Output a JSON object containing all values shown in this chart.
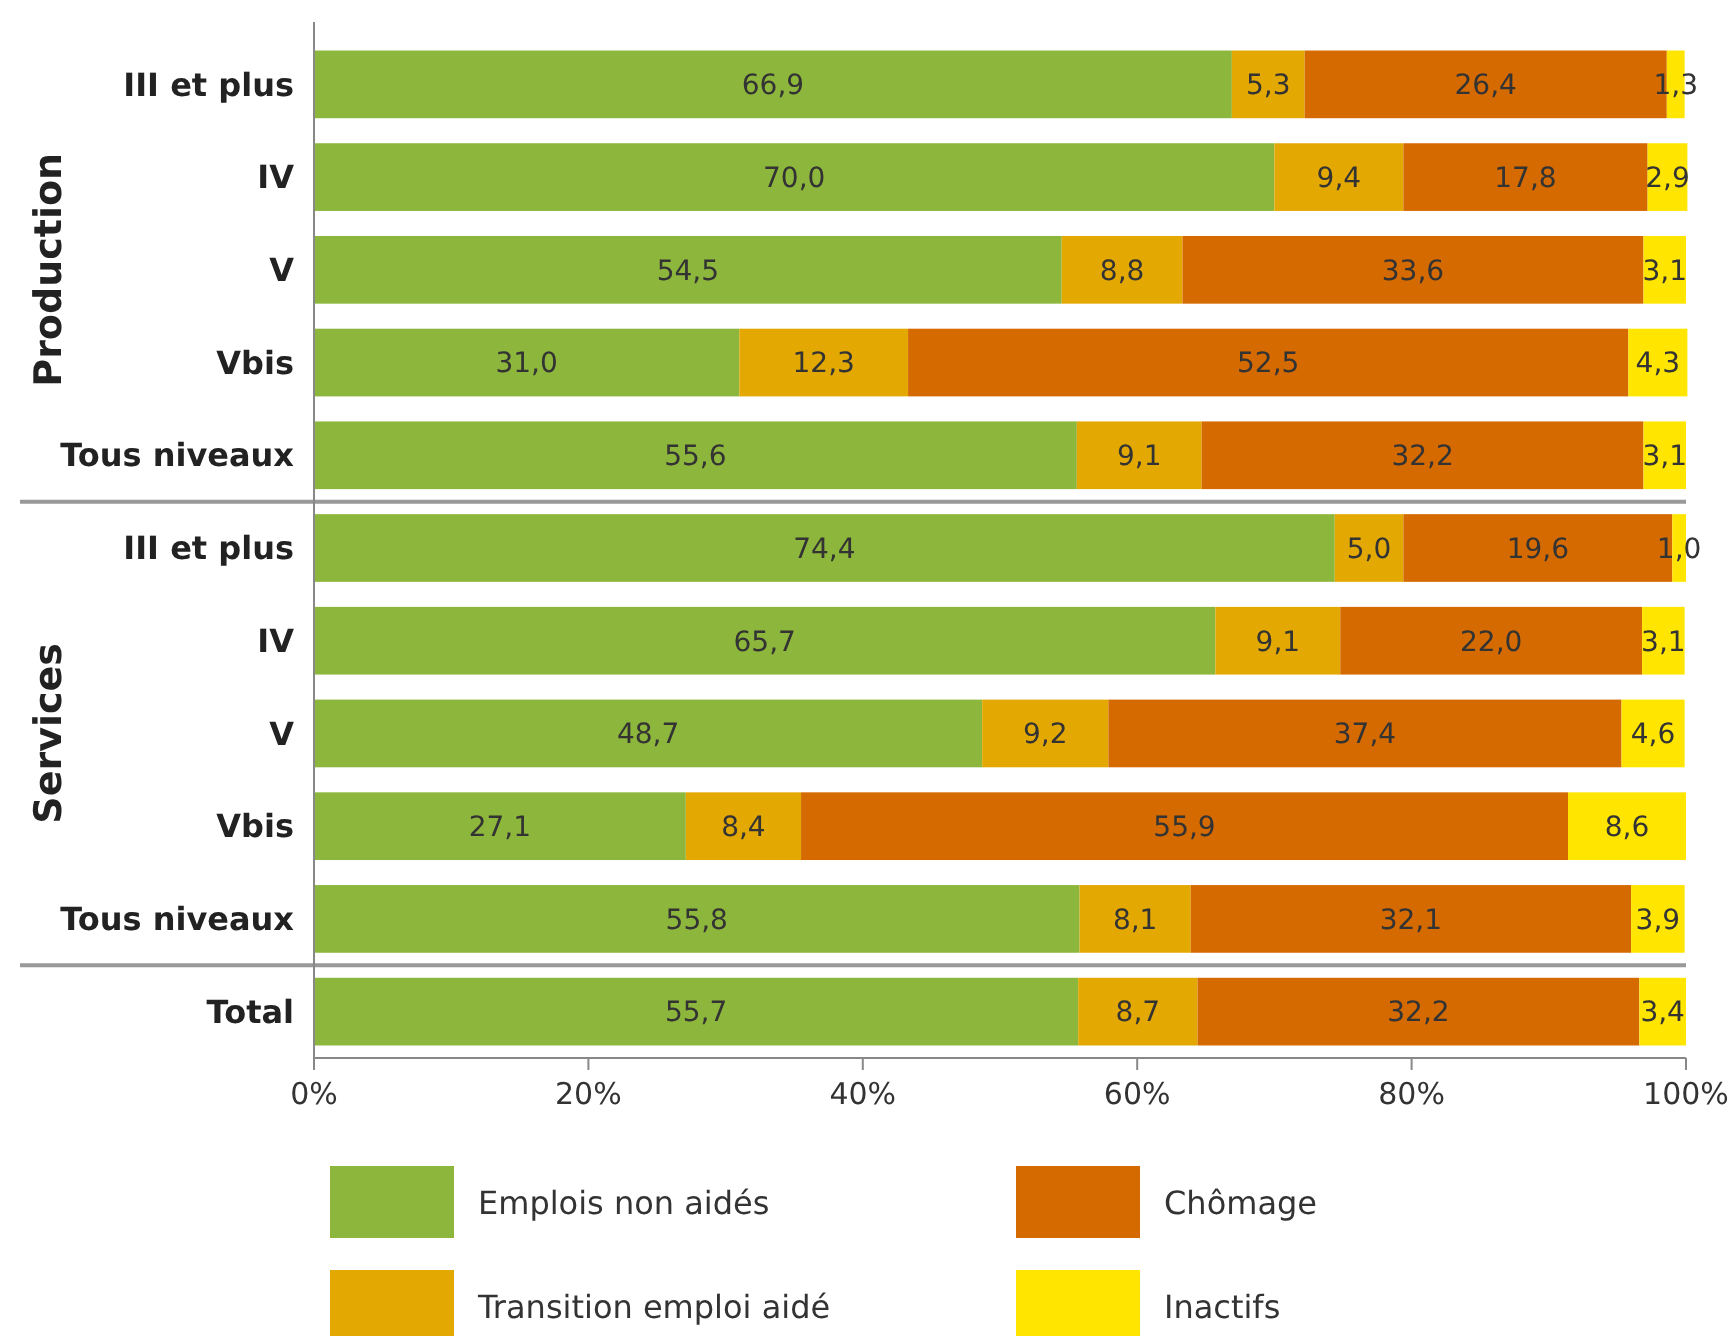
{
  "chart_data": {
    "type": "bar",
    "orientation": "horizontal",
    "stacked": true,
    "categories": [
      "III et plus",
      "IV",
      "V",
      "Vbis",
      "Tous niveaux",
      "III et plus",
      "IV",
      "V",
      "Vbis",
      "Tous niveaux",
      "Total"
    ],
    "annotations": [
      "Production",
      "Services"
    ],
    "series": [
      {
        "name": "Emplois non aidés",
        "color": "#8db63c",
        "values": [
          66.9,
          70.0,
          54.5,
          31.0,
          55.6,
          74.4,
          65.7,
          48.7,
          27.1,
          55.8,
          55.7
        ],
        "value_labels": [
          "66,9",
          "70,0",
          "54,5",
          "31,0",
          "55,6",
          "74,4",
          "65,7",
          "48,7",
          "27,1",
          "55,8",
          "55,7"
        ]
      },
      {
        "name": "Transition emploi aidé",
        "color": "#e3a902",
        "values": [
          5.3,
          9.4,
          8.8,
          12.3,
          9.1,
          5.0,
          9.1,
          9.2,
          8.4,
          8.1,
          8.7
        ],
        "value_labels": [
          "5,3",
          "9,4",
          "8,8",
          "12,3",
          "9,1",
          "5,0",
          "9,1",
          "9,2",
          "8,4",
          "8,1",
          "8,7"
        ]
      },
      {
        "name": "Chômage",
        "color": "#d46a00",
        "values": [
          26.4,
          17.8,
          33.6,
          52.5,
          32.2,
          19.6,
          22.0,
          37.4,
          55.9,
          32.1,
          32.2
        ],
        "value_labels": [
          "26,4",
          "17,8",
          "33,6",
          "52,5",
          "32,2",
          "19,6",
          "22,0",
          "37,4",
          "55,9",
          "32,1",
          "32,2"
        ]
      },
      {
        "name": "Inactifs",
        "color": "#ffe500",
        "values": [
          1.3,
          2.9,
          3.1,
          4.3,
          3.1,
          1.0,
          3.1,
          4.6,
          8.6,
          3.9,
          3.4
        ],
        "value_labels": [
          "1,3",
          "2,9",
          "3,1",
          "4,3",
          "3,1",
          "1,0",
          "3,1",
          "4,6",
          "8,6",
          "3,9",
          "3,4"
        ]
      }
    ],
    "xlim": [
      0,
      100
    ],
    "xticks": [
      {
        "value": 0,
        "label": "0%"
      },
      {
        "value": 20,
        "label": "20%"
      },
      {
        "value": 40,
        "label": "40%"
      },
      {
        "value": 60,
        "label": "60%"
      },
      {
        "value": 80,
        "label": "80%"
      },
      {
        "value": 100,
        "label": "100%"
      }
    ],
    "legend": "bottom"
  }
}
